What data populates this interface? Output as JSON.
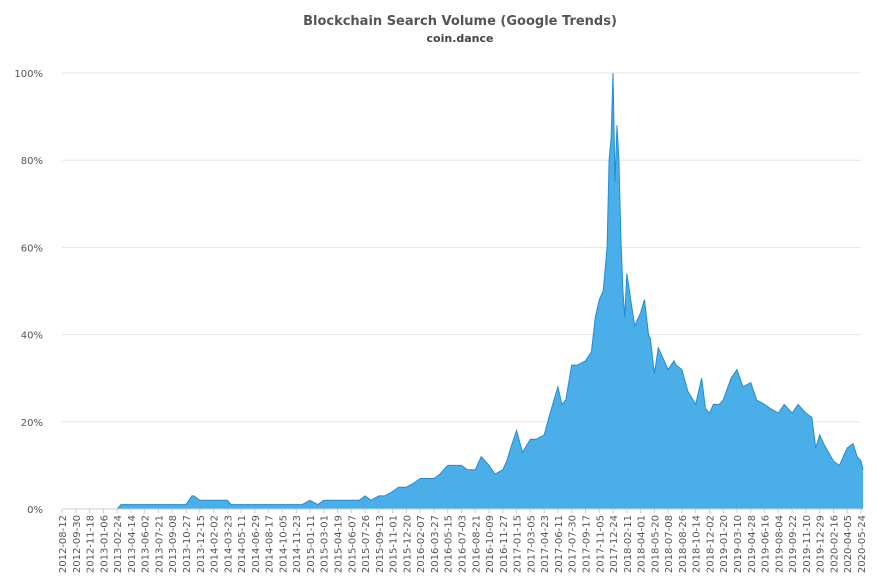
{
  "chart_data": {
    "type": "area",
    "title": "Blockchain Search Volume (Google Trends)",
    "subtitle": "coin.dance",
    "xlabel": "",
    "ylabel": "",
    "ylim": [
      0,
      100
    ],
    "yticks": [
      "0%",
      "20%",
      "40%",
      "60%",
      "80%",
      "100%"
    ],
    "grid": true,
    "legend": "none",
    "colors": {
      "fill": "#4aaee8",
      "stroke": "#1f8dd6",
      "grid": "#e6e6e6",
      "text": "#555555"
    },
    "x_tick_labels": [
      "2012-08-12",
      "2012-09-30",
      "2012-11-18",
      "2013-01-06",
      "2013-02-24",
      "2013-04-14",
      "2013-06-02",
      "2013-07-21",
      "2013-09-08",
      "2013-10-27",
      "2013-12-15",
      "2014-02-02",
      "2014-03-23",
      "2014-05-11",
      "2014-06-29",
      "2014-08-17",
      "2014-10-05",
      "2014-11-23",
      "2015-01-11",
      "2015-03-01",
      "2015-04-19",
      "2015-06-07",
      "2015-07-26",
      "2015-09-13",
      "2015-11-01",
      "2015-12-20",
      "2016-02-07",
      "2016-03-27",
      "2016-05-15",
      "2016-07-03",
      "2016-08-21",
      "2016-10-09",
      "2016-11-27",
      "2017-01-15",
      "2017-03-05",
      "2017-04-23",
      "2017-06-11",
      "2017-07-30",
      "2017-09-17",
      "2017-11-05",
      "2017-12-24",
      "2018-02-11",
      "2018-04-01",
      "2018-05-20",
      "2018-07-08",
      "2018-08-26",
      "2018-10-14",
      "2018-12-02",
      "2019-01-20",
      "2019-03-10",
      "2019-04-28",
      "2019-06-16",
      "2019-08-04",
      "2019-09-22",
      "2019-11-10",
      "2019-12-29",
      "2020-02-16",
      "2020-04-05",
      "2020-05-24"
    ],
    "x": [
      "2012-08-12",
      "2012-09-30",
      "2012-11-18",
      "2013-01-06",
      "2013-02-24",
      "2013-03-10",
      "2013-04-14",
      "2013-04-28",
      "2013-06-02",
      "2013-06-16",
      "2013-07-21",
      "2013-09-08",
      "2013-10-27",
      "2013-11-17",
      "2013-11-24",
      "2013-12-15",
      "2014-02-02",
      "2014-03-23",
      "2014-04-06",
      "2014-05-11",
      "2014-06-29",
      "2014-07-20",
      "2014-08-17",
      "2014-10-05",
      "2014-11-23",
      "2014-12-14",
      "2015-01-11",
      "2015-02-08",
      "2015-03-01",
      "2015-04-19",
      "2015-06-07",
      "2015-07-05",
      "2015-07-26",
      "2015-08-16",
      "2015-09-13",
      "2015-10-04",
      "2015-11-01",
      "2015-11-22",
      "2015-12-20",
      "2016-01-17",
      "2016-02-07",
      "2016-03-06",
      "2016-03-27",
      "2016-04-17",
      "2016-05-15",
      "2016-06-05",
      "2016-07-03",
      "2016-07-24",
      "2016-08-21",
      "2016-09-11",
      "2016-10-09",
      "2016-10-30",
      "2016-11-27",
      "2016-12-11",
      "2016-12-25",
      "2017-01-15",
      "2017-02-05",
      "2017-03-05",
      "2017-03-26",
      "2017-04-23",
      "2017-05-14",
      "2017-05-28",
      "2017-06-11",
      "2017-06-25",
      "2017-07-09",
      "2017-07-30",
      "2017-08-20",
      "2017-09-17",
      "2017-10-08",
      "2017-10-22",
      "2017-11-05",
      "2017-11-19",
      "2017-12-03",
      "2017-12-10",
      "2017-12-17",
      "2017-12-24",
      "2017-12-31",
      "2018-01-07",
      "2018-01-14",
      "2018-01-21",
      "2018-01-28",
      "2018-02-04",
      "2018-02-11",
      "2018-02-25",
      "2018-03-11",
      "2018-04-01",
      "2018-04-15",
      "2018-04-29",
      "2018-05-06",
      "2018-05-20",
      "2018-06-03",
      "2018-06-17",
      "2018-07-08",
      "2018-07-29",
      "2018-08-05",
      "2018-08-26",
      "2018-09-16",
      "2018-10-14",
      "2018-11-04",
      "2018-11-18",
      "2018-12-02",
      "2018-12-16",
      "2019-01-06",
      "2019-01-20",
      "2019-02-17",
      "2019-03-10",
      "2019-03-31",
      "2019-04-28",
      "2019-05-19",
      "2019-06-16",
      "2019-07-07",
      "2019-08-04",
      "2019-08-25",
      "2019-09-22",
      "2019-10-13",
      "2019-11-10",
      "2019-12-01",
      "2019-12-15",
      "2019-12-29",
      "2020-01-12",
      "2020-02-16",
      "2020-03-08",
      "2020-04-05",
      "2020-04-26",
      "2020-05-10",
      "2020-05-24",
      "2020-05-31"
    ],
    "series": [
      {
        "values": [
          0,
          0,
          0,
          0,
          0,
          1,
          1,
          1,
          1,
          1,
          1,
          1,
          1,
          3,
          3,
          2,
          2,
          2,
          1,
          1,
          1,
          1,
          1,
          1,
          1,
          1,
          2,
          1,
          2,
          2,
          2,
          2,
          3,
          2,
          3,
          3,
          4,
          5,
          5,
          6,
          7,
          7,
          7,
          8,
          10,
          10,
          10,
          9,
          9,
          12,
          10,
          8,
          9,
          11,
          14,
          18,
          13,
          16,
          16,
          17,
          22,
          25,
          28,
          24,
          25,
          33,
          33,
          34,
          36,
          44,
          48,
          50,
          60,
          80,
          85,
          100,
          75,
          88,
          80,
          62,
          50,
          44,
          54,
          48,
          42,
          45,
          48,
          40,
          39,
          31,
          37,
          35,
          32,
          34,
          33,
          32,
          27,
          24,
          30,
          23,
          22,
          24,
          24,
          25,
          30,
          32,
          28,
          29,
          25,
          24,
          23,
          22,
          24,
          22,
          24,
          22,
          21,
          14,
          17,
          15,
          11,
          10,
          14,
          15,
          12,
          11,
          9
        ]
      }
    ]
  }
}
